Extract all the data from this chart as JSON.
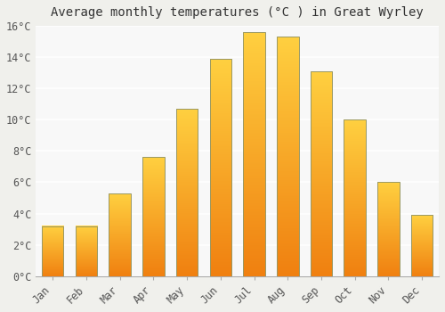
{
  "title": "Average monthly temperatures (°C ) in Great Wyrley",
  "months": [
    "Jan",
    "Feb",
    "Mar",
    "Apr",
    "May",
    "Jun",
    "Jul",
    "Aug",
    "Sep",
    "Oct",
    "Nov",
    "Dec"
  ],
  "values": [
    3.2,
    3.2,
    5.3,
    7.6,
    10.7,
    13.9,
    15.6,
    15.3,
    13.1,
    10.0,
    6.0,
    3.9
  ],
  "ylim": [
    0,
    16
  ],
  "yticks": [
    0,
    2,
    4,
    6,
    8,
    10,
    12,
    14,
    16
  ],
  "ytick_labels": [
    "0°C",
    "2°C",
    "4°C",
    "6°C",
    "8°C",
    "10°C",
    "12°C",
    "14°C",
    "16°C"
  ],
  "bar_color_bottom": "#F08010",
  "bar_color_top": "#FFD040",
  "bar_edge_color": "#999966",
  "background_color": "#F0F0EC",
  "plot_bg_color": "#F8F8F8",
  "grid_color": "#FFFFFF",
  "title_fontsize": 10,
  "tick_fontsize": 8.5,
  "font_family": "monospace",
  "bar_width": 0.65
}
